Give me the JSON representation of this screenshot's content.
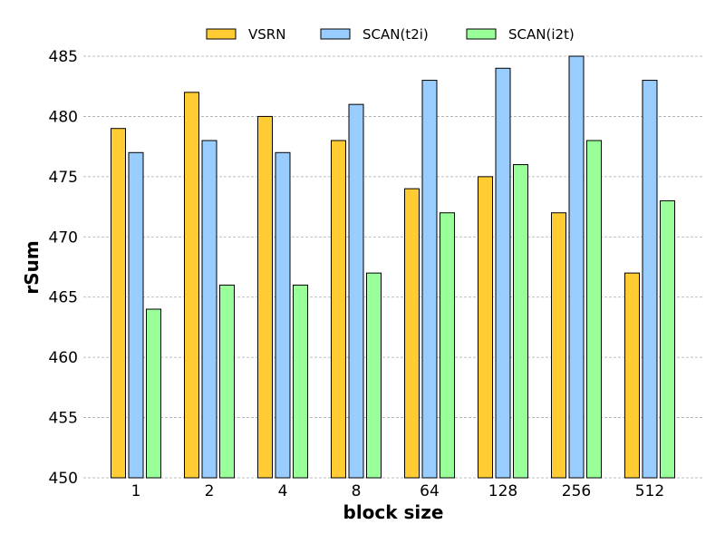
{
  "chart_data": {
    "type": "bar",
    "categories": [
      "1",
      "2",
      "4",
      "8",
      "64",
      "128",
      "256",
      "512"
    ],
    "series": [
      {
        "name": "VSRN",
        "color": "#ffcc33",
        "values": [
          479,
          482,
          480,
          478,
          474,
          475,
          472,
          467
        ]
      },
      {
        "name": "SCAN(t2i)",
        "color": "#99ccff",
        "values": [
          477,
          478,
          477,
          481,
          483,
          484,
          485,
          483
        ]
      },
      {
        "name": "SCAN(i2t)",
        "color": "#99ff99",
        "values": [
          464,
          466,
          466,
          467,
          472,
          476,
          478,
          473
        ]
      }
    ],
    "xlabel": "block size",
    "ylabel": "rSum",
    "ylim": [
      450,
      485
    ],
    "yticks": [
      450,
      455,
      460,
      465,
      470,
      475,
      480,
      485
    ],
    "grid": "horizontal dashed",
    "legend_position": "top"
  }
}
